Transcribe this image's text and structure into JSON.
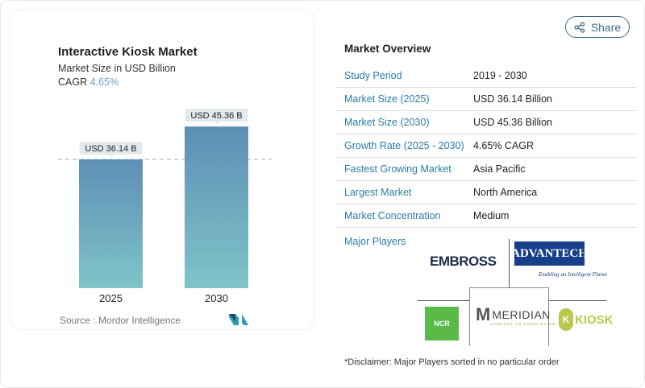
{
  "chart_data": {
    "type": "bar",
    "title": "Interactive Kiosk Market",
    "subtitle": "Market Size in USD Billion",
    "cagr_label": "CAGR",
    "cagr_value": "4.65%",
    "categories": [
      "2025",
      "2030"
    ],
    "values": [
      36.14,
      45.36
    ],
    "data_labels": [
      "USD 36.14 B",
      "USD 45.36 B"
    ],
    "reference_line": 36.14,
    "grid": false,
    "colors": {
      "bar_top": "#5d8fb4",
      "bar_bottom": "#7fc4c9",
      "label_bg": "#e3e8ec"
    }
  },
  "source": "Source :  Mordor Intelligence",
  "share_label": "Share",
  "overview": {
    "title": "Market Overview",
    "rows": [
      {
        "k": "Study Period",
        "v": "2019 - 2030"
      },
      {
        "k": "Market Size (2025)",
        "v": "USD 36.14 Billion"
      },
      {
        "k": "Market Size (2030)",
        "v": "USD 45.36 Billion"
      },
      {
        "k": "Growth Rate (2025 - 2030)",
        "v": "4.65% CAGR"
      },
      {
        "k": "Fastest Growing Market",
        "v": "Asia Pacific"
      },
      {
        "k": "Largest Market",
        "v": "North America"
      },
      {
        "k": "Market Concentration",
        "v": "Medium"
      }
    ],
    "major_players_label": "Major Players",
    "players": [
      "EMBROSS",
      "ADVANTECH",
      "NCR",
      "MERIDIAN",
      "KIOSK"
    ],
    "advantech_tagline": "Enabling an Intelligent Planet",
    "meridian_tagline": "CONCEPT TO COMPLETION"
  },
  "disclaimer": "*Disclaimer: Major Players sorted in no particular order"
}
